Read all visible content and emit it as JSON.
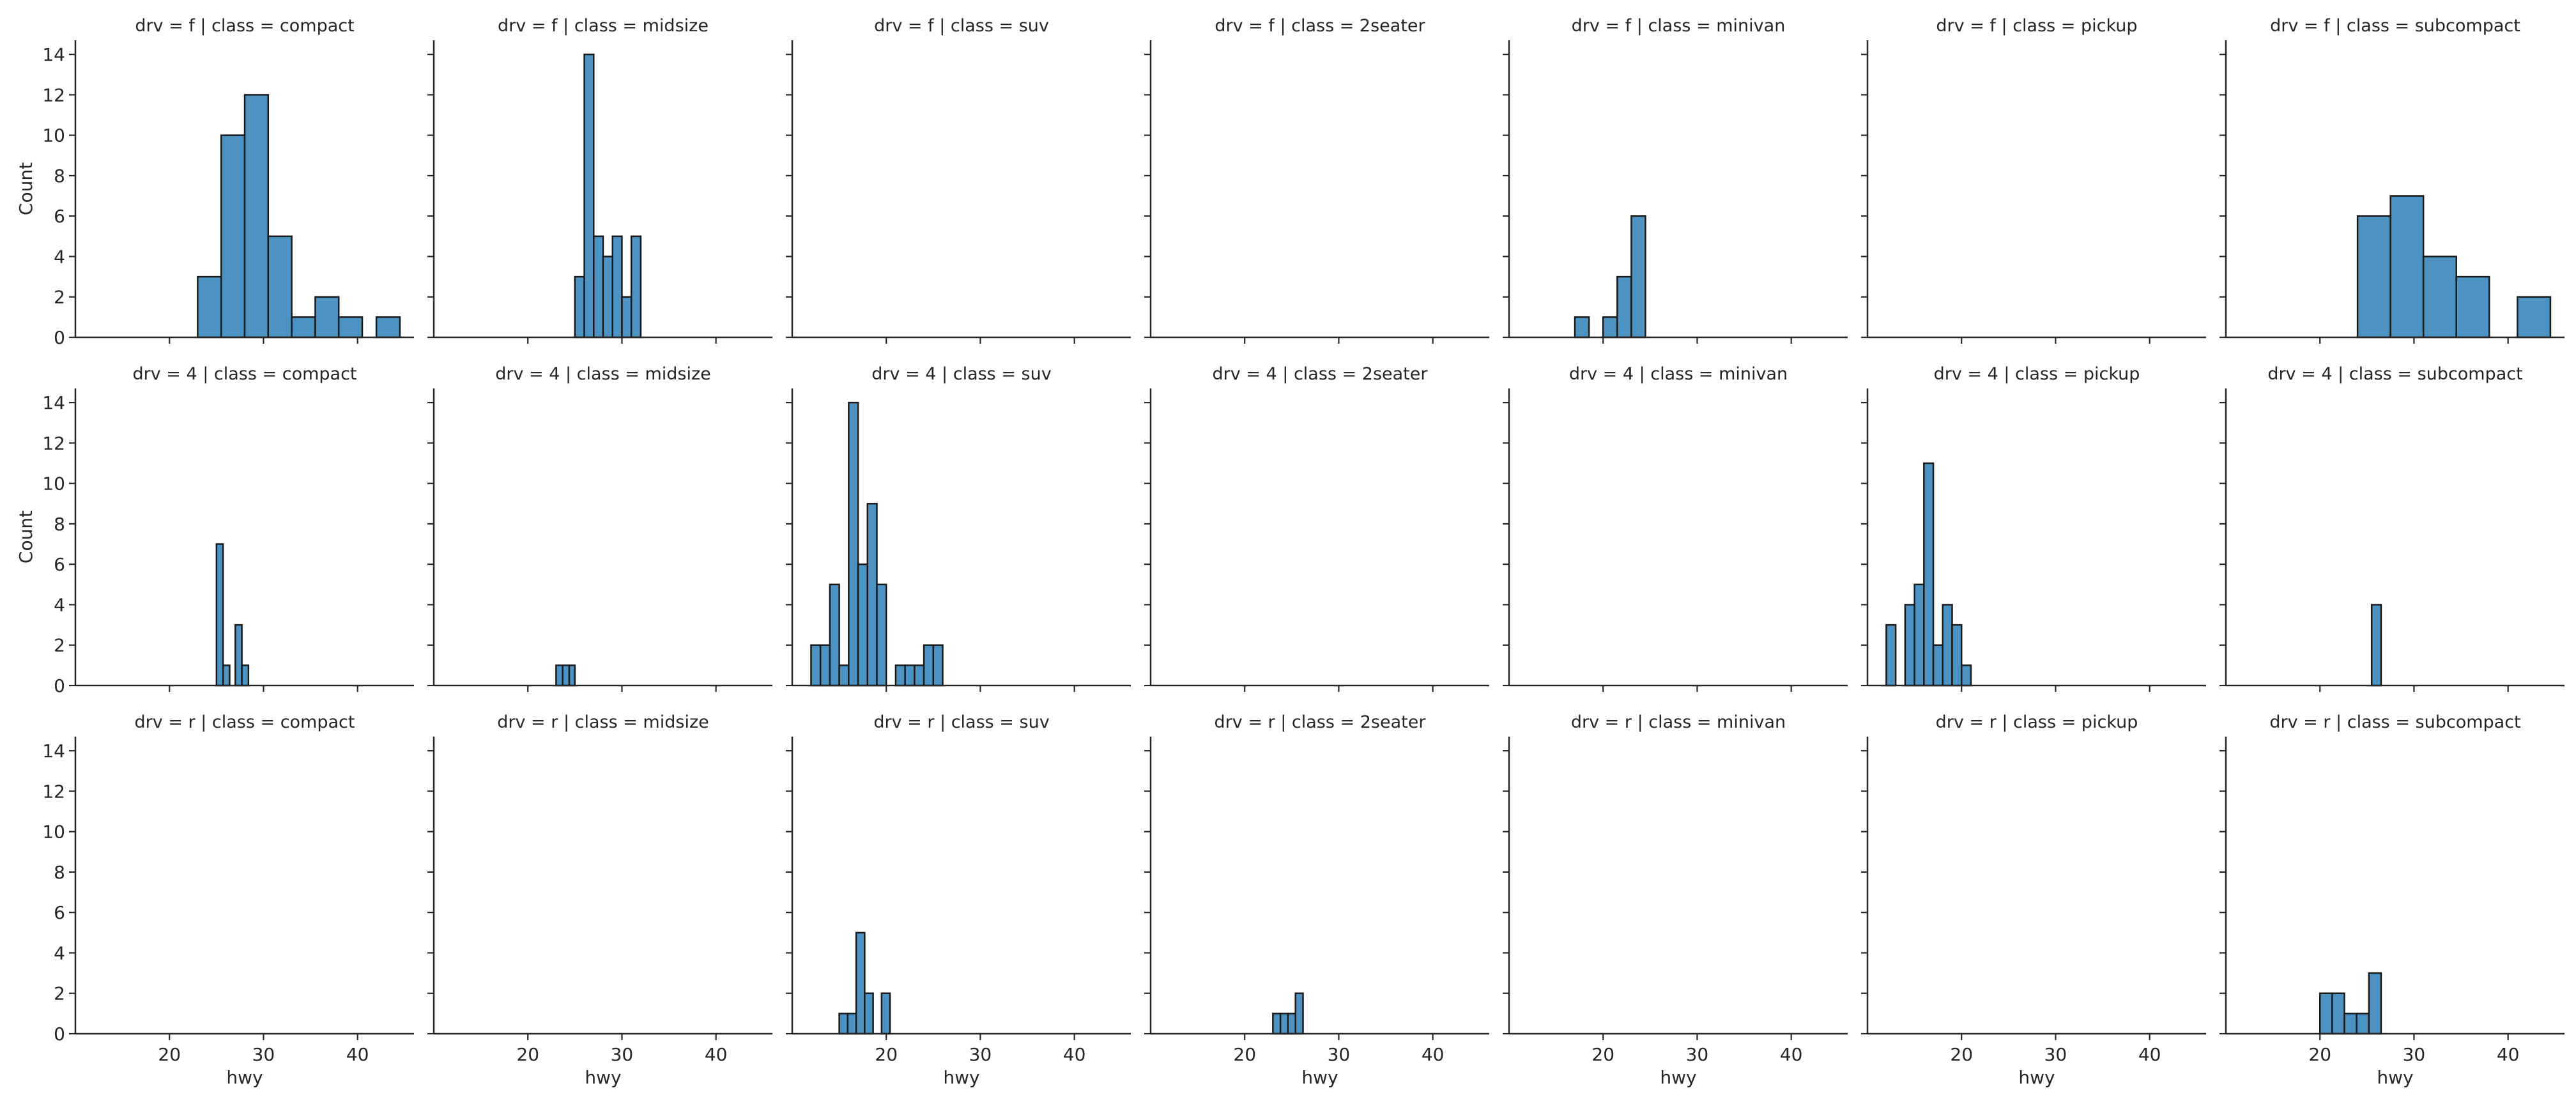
{
  "chart_data": {
    "type": "histogram",
    "grid": false,
    "xlim": [
      10,
      46
    ],
    "ylim": [
      0,
      14.7
    ],
    "xticks": [
      20,
      30,
      40
    ],
    "yticks": [
      0,
      2,
      4,
      6,
      8,
      10,
      12,
      14
    ],
    "xlabel": "hwy",
    "ylabel": "Count",
    "colors": {
      "fill": "#4c93c3",
      "edge": "#1a1a1a"
    },
    "columns": [
      "compact",
      "midsize",
      "suv",
      "2seater",
      "minivan",
      "pickup",
      "subcompact"
    ],
    "rows": [
      "f",
      "4",
      "r"
    ],
    "panels": [
      {
        "title": "drv = f | class = compact",
        "bins": [
          {
            "x0": 23,
            "x1": 25.5,
            "count": 3
          },
          {
            "x0": 25.5,
            "x1": 28,
            "count": 10
          },
          {
            "x0": 28,
            "x1": 30.5,
            "count": 12
          },
          {
            "x0": 30.5,
            "x1": 33,
            "count": 5
          },
          {
            "x0": 33,
            "x1": 35.5,
            "count": 1
          },
          {
            "x0": 35.5,
            "x1": 38,
            "count": 2
          },
          {
            "x0": 38,
            "x1": 40.5,
            "count": 1
          },
          {
            "x0": 42,
            "x1": 44.5,
            "count": 1
          }
        ]
      },
      {
        "title": "drv = f | class = midsize",
        "bins": [
          {
            "x0": 25,
            "x1": 26,
            "count": 3
          },
          {
            "x0": 26,
            "x1": 27,
            "count": 14
          },
          {
            "x0": 27,
            "x1": 28,
            "count": 5
          },
          {
            "x0": 28,
            "x1": 29,
            "count": 4
          },
          {
            "x0": 29,
            "x1": 30,
            "count": 5
          },
          {
            "x0": 30,
            "x1": 31,
            "count": 2
          },
          {
            "x0": 31,
            "x1": 32,
            "count": 5
          }
        ]
      },
      {
        "title": "drv = f | class = suv",
        "bins": []
      },
      {
        "title": "drv = f | class = 2seater",
        "bins": []
      },
      {
        "title": "drv = f | class = minivan",
        "bins": [
          {
            "x0": 17,
            "x1": 18.5,
            "count": 1
          },
          {
            "x0": 20,
            "x1": 21.5,
            "count": 1
          },
          {
            "x0": 21.5,
            "x1": 23,
            "count": 3
          },
          {
            "x0": 23,
            "x1": 24.5,
            "count": 6
          }
        ]
      },
      {
        "title": "drv = f | class = pickup",
        "bins": []
      },
      {
        "title": "drv = f | class = subcompact",
        "bins": [
          {
            "x0": 24,
            "x1": 27.5,
            "count": 6
          },
          {
            "x0": 27.5,
            "x1": 31,
            "count": 7
          },
          {
            "x0": 31,
            "x1": 34.5,
            "count": 4
          },
          {
            "x0": 34.5,
            "x1": 38,
            "count": 3
          },
          {
            "x0": 41,
            "x1": 44.5,
            "count": 2
          }
        ]
      },
      {
        "title": "drv = 4 | class = compact",
        "bins": [
          {
            "x0": 25,
            "x1": 25.7,
            "count": 7
          },
          {
            "x0": 25.7,
            "x1": 26.4,
            "count": 1
          },
          {
            "x0": 27,
            "x1": 27.7,
            "count": 3
          },
          {
            "x0": 27.7,
            "x1": 28.4,
            "count": 1
          }
        ]
      },
      {
        "title": "drv = 4 | class = midsize",
        "bins": [
          {
            "x0": 23,
            "x1": 23.7,
            "count": 1
          },
          {
            "x0": 23.7,
            "x1": 24.4,
            "count": 1
          },
          {
            "x0": 24.4,
            "x1": 25,
            "count": 1
          }
        ]
      },
      {
        "title": "drv = 4 | class = suv",
        "bins": [
          {
            "x0": 12,
            "x1": 13,
            "count": 2
          },
          {
            "x0": 13,
            "x1": 14,
            "count": 2
          },
          {
            "x0": 14,
            "x1": 15,
            "count": 5
          },
          {
            "x0": 15,
            "x1": 16,
            "count": 1
          },
          {
            "x0": 16,
            "x1": 17,
            "count": 14
          },
          {
            "x0": 17,
            "x1": 18,
            "count": 6
          },
          {
            "x0": 18,
            "x1": 19,
            "count": 9
          },
          {
            "x0": 19,
            "x1": 20,
            "count": 5
          },
          {
            "x0": 21,
            "x1": 22,
            "count": 1
          },
          {
            "x0": 22,
            "x1": 23,
            "count": 1
          },
          {
            "x0": 23,
            "x1": 24,
            "count": 1
          },
          {
            "x0": 24,
            "x1": 25,
            "count": 2
          },
          {
            "x0": 25,
            "x1": 26,
            "count": 2
          }
        ]
      },
      {
        "title": "drv = 4 | class = 2seater",
        "bins": []
      },
      {
        "title": "drv = 4 | class = minivan",
        "bins": []
      },
      {
        "title": "drv = 4 | class = pickup",
        "bins": [
          {
            "x0": 12,
            "x1": 13,
            "count": 3
          },
          {
            "x0": 14,
            "x1": 15,
            "count": 4
          },
          {
            "x0": 15,
            "x1": 16,
            "count": 5
          },
          {
            "x0": 16,
            "x1": 17,
            "count": 11
          },
          {
            "x0": 17,
            "x1": 18,
            "count": 2
          },
          {
            "x0": 18,
            "x1": 19,
            "count": 4
          },
          {
            "x0": 19,
            "x1": 20,
            "count": 3
          },
          {
            "x0": 20,
            "x1": 21,
            "count": 1
          }
        ]
      },
      {
        "title": "drv = 4 | class = subcompact",
        "bins": [
          {
            "x0": 25.5,
            "x1": 26.5,
            "count": 4
          }
        ]
      },
      {
        "title": "drv = r | class = compact",
        "bins": []
      },
      {
        "title": "drv = r | class = midsize",
        "bins": []
      },
      {
        "title": "drv = r | class = suv",
        "bins": [
          {
            "x0": 15,
            "x1": 15.9,
            "count": 1
          },
          {
            "x0": 15.9,
            "x1": 16.8,
            "count": 1
          },
          {
            "x0": 16.8,
            "x1": 17.7,
            "count": 5
          },
          {
            "x0": 17.7,
            "x1": 18.6,
            "count": 2
          },
          {
            "x0": 19.5,
            "x1": 20.4,
            "count": 2
          }
        ]
      },
      {
        "title": "drv = r | class = 2seater",
        "bins": [
          {
            "x0": 23,
            "x1": 23.8,
            "count": 1
          },
          {
            "x0": 23.8,
            "x1": 24.6,
            "count": 1
          },
          {
            "x0": 24.6,
            "x1": 25.4,
            "count": 1
          },
          {
            "x0": 25.4,
            "x1": 26.2,
            "count": 2
          }
        ]
      },
      {
        "title": "drv = r | class = minivan",
        "bins": []
      },
      {
        "title": "drv = r | class = pickup",
        "bins": []
      },
      {
        "title": "drv = r | class = subcompact",
        "bins": [
          {
            "x0": 20,
            "x1": 21.3,
            "count": 2
          },
          {
            "x0": 21.3,
            "x1": 22.6,
            "count": 2
          },
          {
            "x0": 22.6,
            "x1": 23.9,
            "count": 1
          },
          {
            "x0": 23.9,
            "x1": 25.2,
            "count": 1
          },
          {
            "x0": 25.2,
            "x1": 26.5,
            "count": 3
          }
        ]
      }
    ]
  }
}
